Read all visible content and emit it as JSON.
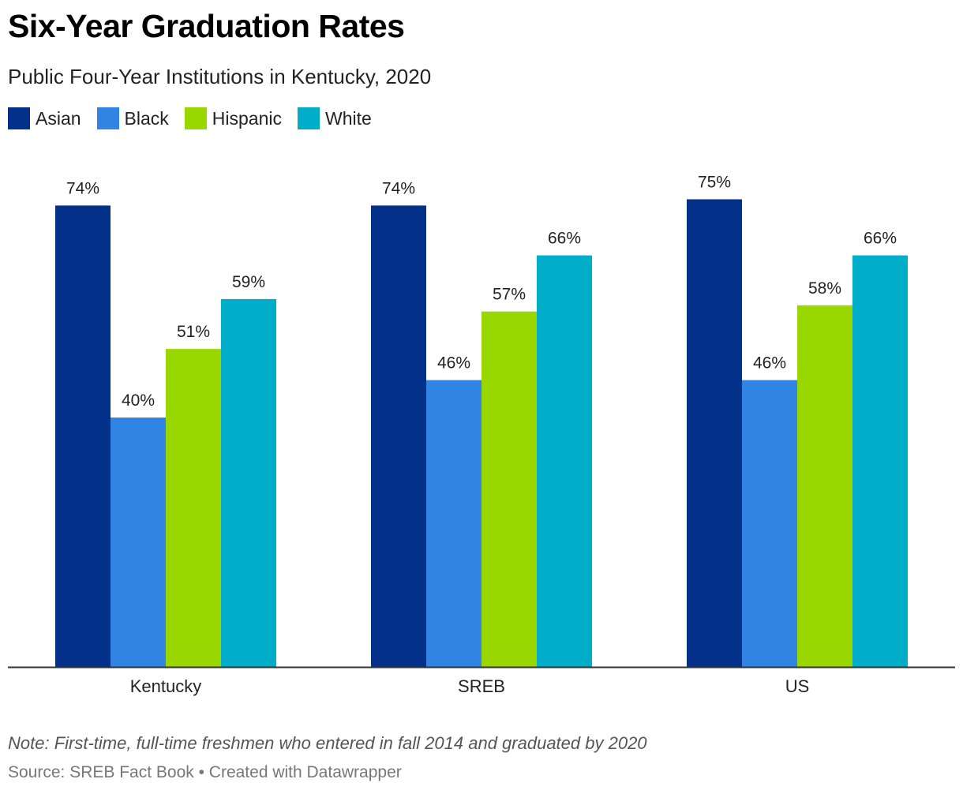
{
  "title": "Six-Year Graduation Rates",
  "subtitle": "Public Four-Year Institutions in Kentucky, 2020",
  "note": "Note: First-time, full-time freshmen who entered in fall 2014 and graduated by 2020",
  "source": "Source: SREB Fact Book • Created with Datawrapper",
  "chart_data": {
    "type": "bar",
    "categories": [
      "Kentucky",
      "SREB",
      "US"
    ],
    "series": [
      {
        "name": "Asian",
        "color": "#03318a",
        "values": [
          74,
          74,
          75
        ],
        "labels": [
          "74%",
          "74%",
          "75%"
        ]
      },
      {
        "name": "Black",
        "color": "#3184e4",
        "values": [
          40,
          46,
          46
        ],
        "labels": [
          "40%",
          "46%",
          "46%"
        ]
      },
      {
        "name": "Hispanic",
        "color": "#98d700",
        "values": [
          51,
          57,
          58
        ],
        "labels": [
          "51%",
          "57%",
          "58%"
        ]
      },
      {
        "name": "White",
        "color": "#00adc8",
        "values": [
          59,
          66,
          66
        ],
        "labels": [
          "59%",
          "66%",
          "66%"
        ]
      }
    ],
    "title": "Six-Year Graduation Rates",
    "xlabel": "",
    "ylabel": "",
    "ylim": [
      0,
      100
    ],
    "grid": false,
    "legend_position": "top-left"
  }
}
